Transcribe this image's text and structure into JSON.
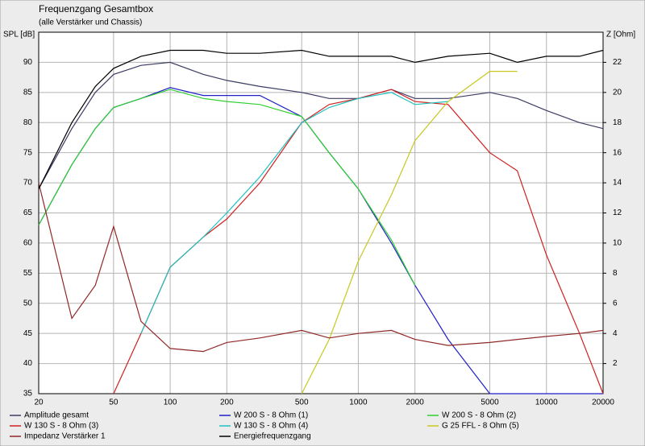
{
  "chart_data": {
    "type": "line",
    "title": "Frequenzgang Gesamtbox",
    "subtitle": "(alle Verstärker und Chassis)",
    "y_label": "SPL [dB]",
    "y2_label": "Z [Ohm]",
    "log_x": true,
    "grid": true,
    "x": [
      20,
      30,
      40,
      50,
      70,
      100,
      150,
      200,
      300,
      500,
      700,
      1000,
      1500,
      2000,
      3000,
      5000,
      7000,
      10000,
      15000,
      20000
    ],
    "xlim": [
      20,
      20000
    ],
    "xticks": [
      20,
      50,
      100,
      200,
      500,
      1000,
      2000,
      5000,
      10000,
      20000
    ],
    "ylim": [
      35,
      95
    ],
    "yticks": [
      35,
      40,
      45,
      50,
      55,
      60,
      65,
      70,
      75,
      80,
      85,
      90
    ],
    "y2lim": [
      0,
      24
    ],
    "y2ticks": [
      2,
      4,
      6,
      8,
      10,
      12,
      14,
      16,
      18,
      20,
      22
    ],
    "series": [
      {
        "name": "Amplitude gesamt",
        "color": "#3c3c64",
        "values": [
          69,
          79,
          85,
          88,
          89.5,
          90,
          88,
          87,
          86,
          85,
          84,
          84,
          85.5,
          84,
          84,
          85,
          84,
          82,
          80,
          79
        ]
      },
      {
        "name": "W 200 S - 8 Ohm (1)",
        "color": "#2020c8",
        "values": [
          63,
          73,
          79,
          82.5,
          84,
          85.8,
          84.5,
          84.5,
          84.5,
          81,
          75,
          69,
          60,
          53,
          44,
          35,
          35,
          35,
          35,
          35
        ]
      },
      {
        "name": "W 200 S - 8 Ohm (2)",
        "color": "#30d030",
        "values": [
          63,
          73,
          79,
          82.5,
          84,
          85.5,
          84,
          83.5,
          83,
          81,
          75,
          69,
          60.5,
          53,
          null,
          null,
          null,
          null,
          null,
          null
        ]
      },
      {
        "name": "W 130 S - 8 Ohm (3)",
        "color": "#d02020",
        "values": [
          null,
          null,
          null,
          35,
          45,
          56,
          61,
          64,
          70,
          80,
          83,
          84,
          85.5,
          83.5,
          83,
          75,
          72,
          58,
          45,
          35
        ]
      },
      {
        "name": "W 130 S - 8 Ohm (4)",
        "color": "#20c0c0",
        "values": [
          null,
          null,
          null,
          null,
          45,
          56,
          61,
          65,
          71,
          80,
          82.5,
          84,
          85,
          83,
          83.5,
          null,
          null,
          null,
          null,
          null
        ]
      },
      {
        "name": "G 25 FFL - 8 Ohm (5)",
        "color": "#c8c820",
        "values": [
          null,
          null,
          null,
          null,
          null,
          null,
          null,
          null,
          null,
          35,
          44,
          57,
          68,
          77,
          83.5,
          88.5,
          88.5,
          null,
          null,
          null
        ]
      },
      {
        "name": "Impedanz Verstärker 1",
        "color": "#902828",
        "axis": "y2",
        "values": [
          14,
          5,
          7.2,
          11.1,
          4.8,
          3,
          2.8,
          3.4,
          3.7,
          4.2,
          3.7,
          4,
          4.2,
          3.6,
          3.2,
          3.4,
          3.6,
          3.8,
          4,
          4.2
        ]
      },
      {
        "name": "Energiefrequenzgang",
        "color": "#000000",
        "values": [
          69,
          80,
          86,
          89,
          91,
          92,
          92,
          91.5,
          91.5,
          92,
          91,
          91,
          91,
          90,
          91,
          91.5,
          90,
          91,
          91,
          92
        ]
      }
    ]
  }
}
